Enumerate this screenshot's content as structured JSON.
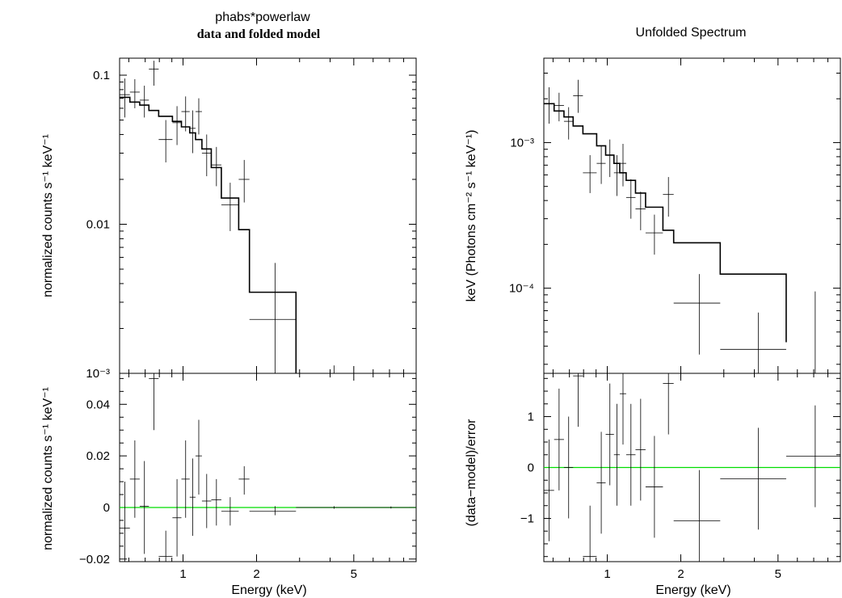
{
  "figure": {
    "left_title_line1": "phabs*powerlaw",
    "left_title_line2": "data and folded model",
    "right_title": "Unfolded Spectrum",
    "left_xlabel": "Energy (keV)",
    "right_xlabel": "Energy (keV)",
    "left_top_ylabel": "normalized counts s⁻¹ keV⁻¹",
    "left_bottom_ylabel": "normalized counts s⁻¹ keV⁻¹",
    "right_top_ylabel": "keV (Photons cm⁻² s⁻¹ keV⁻¹)",
    "right_bottom_ylabel": "(data−model)/error",
    "data_color": "#000000",
    "zero_line_color": "#00dd00"
  },
  "chart_data": [
    {
      "id": "left_top",
      "type": "scatter",
      "xscale": "log",
      "yscale": "log",
      "xlim": [
        0.55,
        9.0
      ],
      "ylim": [
        0.001,
        0.13
      ],
      "xticks": [
        1,
        2,
        5
      ],
      "xticklabels": [
        "1",
        "2",
        "5"
      ],
      "yticks": [
        0.001,
        0.01,
        0.1
      ],
      "yticklabels": [
        "10⁻³",
        "0.01",
        "0.1"
      ],
      "data": [
        {
          "x": 0.578,
          "xlo": 0.55,
          "xhi": 0.606,
          "y": 0.074,
          "ylo": 0.052,
          "yhi": 0.095
        },
        {
          "x": 0.635,
          "xlo": 0.606,
          "xhi": 0.665,
          "y": 0.077,
          "ylo": 0.06,
          "yhi": 0.094
        },
        {
          "x": 0.695,
          "xlo": 0.665,
          "xhi": 0.725,
          "y": 0.068,
          "ylo": 0.052,
          "yhi": 0.085
        },
        {
          "x": 0.76,
          "xlo": 0.725,
          "xhi": 0.795,
          "y": 0.11,
          "ylo": 0.085,
          "yhi": 0.125
        },
        {
          "x": 0.85,
          "xlo": 0.795,
          "xhi": 0.905,
          "y": 0.037,
          "ylo": 0.026,
          "yhi": 0.05
        },
        {
          "x": 0.945,
          "xlo": 0.905,
          "xhi": 0.985,
          "y": 0.048,
          "ylo": 0.034,
          "yhi": 0.062
        },
        {
          "x": 1.025,
          "xlo": 0.985,
          "xhi": 1.065,
          "y": 0.057,
          "ylo": 0.042,
          "yhi": 0.072
        },
        {
          "x": 1.095,
          "xlo": 1.065,
          "xhi": 1.125,
          "y": 0.044,
          "ylo": 0.03,
          "yhi": 0.058
        },
        {
          "x": 1.16,
          "xlo": 1.125,
          "xhi": 1.195,
          "y": 0.057,
          "ylo": 0.04,
          "yhi": 0.07
        },
        {
          "x": 1.25,
          "xlo": 1.195,
          "xhi": 1.305,
          "y": 0.03,
          "ylo": 0.021,
          "yhi": 0.04
        },
        {
          "x": 1.37,
          "xlo": 1.305,
          "xhi": 1.435,
          "y": 0.025,
          "ylo": 0.018,
          "yhi": 0.033
        },
        {
          "x": 1.56,
          "xlo": 1.435,
          "xhi": 1.69,
          "y": 0.0135,
          "ylo": 0.009,
          "yhi": 0.019
        },
        {
          "x": 1.78,
          "xlo": 1.69,
          "xhi": 1.87,
          "y": 0.02,
          "ylo": 0.014,
          "yhi": 0.027
        },
        {
          "x": 2.38,
          "xlo": 1.87,
          "xhi": 2.9,
          "y": 0.0023,
          "ylo": 0.001,
          "yhi": 0.0055
        },
        {
          "x": 4.15,
          "xlo": 4.15,
          "xhi": 4.15,
          "y": 0.00104,
          "ylo": 0.001,
          "yhi": 0.00113
        }
      ],
      "model": {
        "edges": [
          0.55,
          0.606,
          0.665,
          0.725,
          0.795,
          0.905,
          0.985,
          1.065,
          1.125,
          1.195,
          1.305,
          1.435,
          1.69,
          1.87,
          2.9
        ],
        "values": [
          0.071,
          0.066,
          0.063,
          0.058,
          0.053,
          0.049,
          0.045,
          0.041,
          0.037,
          0.032,
          0.024,
          0.015,
          0.0092,
          0.0035
        ]
      }
    },
    {
      "id": "left_bottom",
      "type": "scatter",
      "xscale": "log",
      "yscale": "linear",
      "xlim": [
        0.55,
        9.0
      ],
      "ylim": [
        -0.021,
        0.052
      ],
      "xticks": [
        1,
        2,
        5
      ],
      "xticklabels": [
        "1",
        "2",
        "5"
      ],
      "yticks": [
        -0.02,
        0,
        0.02,
        0.04
      ],
      "yticklabels": [
        "−0.02",
        "0",
        "0.02",
        "0.04"
      ],
      "zero_line": 0,
      "data": [
        {
          "x": 0.578,
          "xlo": 0.55,
          "xhi": 0.606,
          "y": -0.008,
          "ylo": -0.021,
          "yhi": 0.01
        },
        {
          "x": 0.635,
          "xlo": 0.606,
          "xhi": 0.665,
          "y": 0.011,
          "ylo": -0.004,
          "yhi": 0.026
        },
        {
          "x": 0.695,
          "xlo": 0.665,
          "xhi": 0.725,
          "y": 0.0005,
          "ylo": -0.018,
          "yhi": 0.018
        },
        {
          "x": 0.76,
          "xlo": 0.725,
          "xhi": 0.795,
          "y": 0.05,
          "ylo": 0.03,
          "yhi": 0.052
        },
        {
          "x": 0.85,
          "xlo": 0.795,
          "xhi": 0.905,
          "y": -0.019,
          "ylo": -0.021,
          "yhi": -0.009
        },
        {
          "x": 0.945,
          "xlo": 0.905,
          "xhi": 0.985,
          "y": -0.004,
          "ylo": -0.019,
          "yhi": 0.011
        },
        {
          "x": 1.025,
          "xlo": 0.985,
          "xhi": 1.065,
          "y": 0.011,
          "ylo": -0.004,
          "yhi": 0.026
        },
        {
          "x": 1.095,
          "xlo": 1.065,
          "xhi": 1.125,
          "y": 0.004,
          "ylo": -0.011,
          "yhi": 0.019
        },
        {
          "x": 1.16,
          "xlo": 1.125,
          "xhi": 1.195,
          "y": 0.02,
          "ylo": 0.005,
          "yhi": 0.034
        },
        {
          "x": 1.25,
          "xlo": 1.195,
          "xhi": 1.305,
          "y": 0.0025,
          "ylo": -0.008,
          "yhi": 0.013
        },
        {
          "x": 1.37,
          "xlo": 1.305,
          "xhi": 1.435,
          "y": 0.003,
          "ylo": -0.007,
          "yhi": 0.011
        },
        {
          "x": 1.56,
          "xlo": 1.435,
          "xhi": 1.69,
          "y": -0.0015,
          "ylo": -0.007,
          "yhi": 0.004
        },
        {
          "x": 1.78,
          "xlo": 1.69,
          "xhi": 1.87,
          "y": 0.011,
          "ylo": 0.005,
          "yhi": 0.016
        },
        {
          "x": 2.38,
          "xlo": 1.87,
          "xhi": 2.9,
          "y": -0.0015,
          "ylo": -0.003,
          "yhi": 0.0005
        },
        {
          "x": 4.15,
          "xlo": 2.9,
          "xhi": 5.4,
          "y": 0.0,
          "ylo": -0.0005,
          "yhi": 0.0005
        },
        {
          "x": 7.1,
          "xlo": 5.4,
          "xhi": 9.0,
          "y": 0.0,
          "ylo": -0.0004,
          "yhi": 0.0004
        }
      ]
    },
    {
      "id": "right_top",
      "type": "scatter",
      "xscale": "log",
      "yscale": "log",
      "xlim": [
        0.55,
        9.0
      ],
      "ylim": [
        2.6e-05,
        0.0038
      ],
      "xticks": [
        1,
        2,
        5
      ],
      "xticklabels": [
        "1",
        "2",
        "5"
      ],
      "yticks": [
        0.0001,
        0.001
      ],
      "yticklabels": [
        "10⁻⁴",
        "10⁻³"
      ],
      "data": [
        {
          "x": 0.578,
          "xlo": 0.55,
          "xhi": 0.606,
          "y": 0.00185,
          "ylo": 0.00135,
          "yhi": 0.0024
        },
        {
          "x": 0.635,
          "xlo": 0.606,
          "xhi": 0.665,
          "y": 0.0018,
          "ylo": 0.0014,
          "yhi": 0.0022
        },
        {
          "x": 0.695,
          "xlo": 0.665,
          "xhi": 0.725,
          "y": 0.0014,
          "ylo": 0.00105,
          "yhi": 0.00175
        },
        {
          "x": 0.76,
          "xlo": 0.725,
          "xhi": 0.795,
          "y": 0.0021,
          "ylo": 0.0016,
          "yhi": 0.0027
        },
        {
          "x": 0.85,
          "xlo": 0.795,
          "xhi": 0.905,
          "y": 0.00062,
          "ylo": 0.00045,
          "yhi": 0.00082
        },
        {
          "x": 0.945,
          "xlo": 0.905,
          "xhi": 0.985,
          "y": 0.00072,
          "ylo": 0.00052,
          "yhi": 0.00095
        },
        {
          "x": 1.025,
          "xlo": 0.985,
          "xhi": 1.065,
          "y": 0.00082,
          "ylo": 0.00058,
          "yhi": 0.00105
        },
        {
          "x": 1.095,
          "xlo": 1.065,
          "xhi": 1.125,
          "y": 0.00062,
          "ylo": 0.00043,
          "yhi": 0.00082
        },
        {
          "x": 1.16,
          "xlo": 1.125,
          "xhi": 1.195,
          "y": 0.00072,
          "ylo": 0.0005,
          "yhi": 0.00098
        },
        {
          "x": 1.25,
          "xlo": 1.195,
          "xhi": 1.305,
          "y": 0.00042,
          "ylo": 0.0003,
          "yhi": 0.00056
        },
        {
          "x": 1.37,
          "xlo": 1.305,
          "xhi": 1.435,
          "y": 0.00035,
          "ylo": 0.00025,
          "yhi": 0.00046
        },
        {
          "x": 1.56,
          "xlo": 1.435,
          "xhi": 1.69,
          "y": 0.00024,
          "ylo": 0.00017,
          "yhi": 0.00032
        },
        {
          "x": 1.78,
          "xlo": 1.69,
          "xhi": 1.87,
          "y": 0.00044,
          "ylo": 0.00031,
          "yhi": 0.00058
        },
        {
          "x": 2.38,
          "xlo": 1.87,
          "xhi": 2.9,
          "y": 7.9e-05,
          "ylo": 3.5e-05,
          "yhi": 0.000125
        },
        {
          "x": 4.15,
          "xlo": 2.9,
          "xhi": 5.4,
          "y": 3.8e-05,
          "ylo": 2.6e-05,
          "yhi": 6.8e-05
        },
        {
          "x": 7.1,
          "xlo": 7.1,
          "xhi": 7.1,
          "y": 2.6e-05,
          "ylo": 2.6e-05,
          "yhi": 9.5e-05
        }
      ],
      "model": {
        "edges": [
          0.55,
          0.606,
          0.665,
          0.725,
          0.795,
          0.905,
          0.985,
          1.065,
          1.125,
          1.195,
          1.305,
          1.435,
          1.69,
          1.87,
          2.9,
          5.4
        ],
        "values": [
          0.00185,
          0.00165,
          0.0015,
          0.0013,
          0.00115,
          0.00095,
          0.00082,
          0.00072,
          0.00062,
          0.00055,
          0.00045,
          0.00036,
          0.00025,
          0.000205,
          0.000125,
          4.25e-05
        ]
      }
    },
    {
      "id": "right_bottom",
      "type": "scatter",
      "xscale": "log",
      "yscale": "linear",
      "xlim": [
        0.55,
        9.0
      ],
      "ylim": [
        -1.85,
        1.85
      ],
      "xticks": [
        1,
        2,
        5
      ],
      "xticklabels": [
        "1",
        "2",
        "5"
      ],
      "yticks": [
        -1,
        0,
        1
      ],
      "yticklabels": [
        "−1",
        "0",
        "1"
      ],
      "zero_line": 0,
      "data": [
        {
          "x": 0.578,
          "xlo": 0.55,
          "xhi": 0.606,
          "y": -0.45,
          "ylo": -1.45,
          "yhi": 0.55
        },
        {
          "x": 0.635,
          "xlo": 0.606,
          "xhi": 0.665,
          "y": 0.55,
          "ylo": -0.45,
          "yhi": 1.55
        },
        {
          "x": 0.695,
          "xlo": 0.665,
          "xhi": 0.725,
          "y": 0.0,
          "ylo": -1.0,
          "yhi": 1.0
        },
        {
          "x": 0.76,
          "xlo": 0.725,
          "xhi": 0.795,
          "y": 1.8,
          "ylo": 0.8,
          "yhi": 1.85
        },
        {
          "x": 0.85,
          "xlo": 0.795,
          "xhi": 0.905,
          "y": -1.75,
          "ylo": -1.85,
          "yhi": -0.75
        },
        {
          "x": 0.945,
          "xlo": 0.905,
          "xhi": 0.985,
          "y": -0.3,
          "ylo": -1.3,
          "yhi": 0.7
        },
        {
          "x": 1.025,
          "xlo": 0.985,
          "xhi": 1.065,
          "y": 0.65,
          "ylo": -0.35,
          "yhi": 1.65
        },
        {
          "x": 1.095,
          "xlo": 1.065,
          "xhi": 1.125,
          "y": 0.25,
          "ylo": -0.75,
          "yhi": 1.25
        },
        {
          "x": 1.16,
          "xlo": 1.125,
          "xhi": 1.195,
          "y": 1.45,
          "ylo": 0.45,
          "yhi": 1.85
        },
        {
          "x": 1.25,
          "xlo": 1.195,
          "xhi": 1.305,
          "y": 0.25,
          "ylo": -0.75,
          "yhi": 1.25
        },
        {
          "x": 1.37,
          "xlo": 1.305,
          "xhi": 1.435,
          "y": 0.35,
          "ylo": -0.65,
          "yhi": 1.35
        },
        {
          "x": 1.56,
          "xlo": 1.435,
          "xhi": 1.69,
          "y": -0.38,
          "ylo": -1.38,
          "yhi": 0.62
        },
        {
          "x": 1.78,
          "xlo": 1.69,
          "xhi": 1.87,
          "y": 1.65,
          "ylo": 0.65,
          "yhi": 1.85
        },
        {
          "x": 2.38,
          "xlo": 1.87,
          "xhi": 2.9,
          "y": -1.05,
          "ylo": -1.85,
          "yhi": -0.05
        },
        {
          "x": 4.15,
          "xlo": 2.9,
          "xhi": 5.4,
          "y": -0.22,
          "ylo": -1.22,
          "yhi": 0.78
        },
        {
          "x": 7.1,
          "xlo": 5.4,
          "xhi": 9.0,
          "y": 0.22,
          "ylo": -0.78,
          "yhi": 1.22
        }
      ]
    }
  ]
}
